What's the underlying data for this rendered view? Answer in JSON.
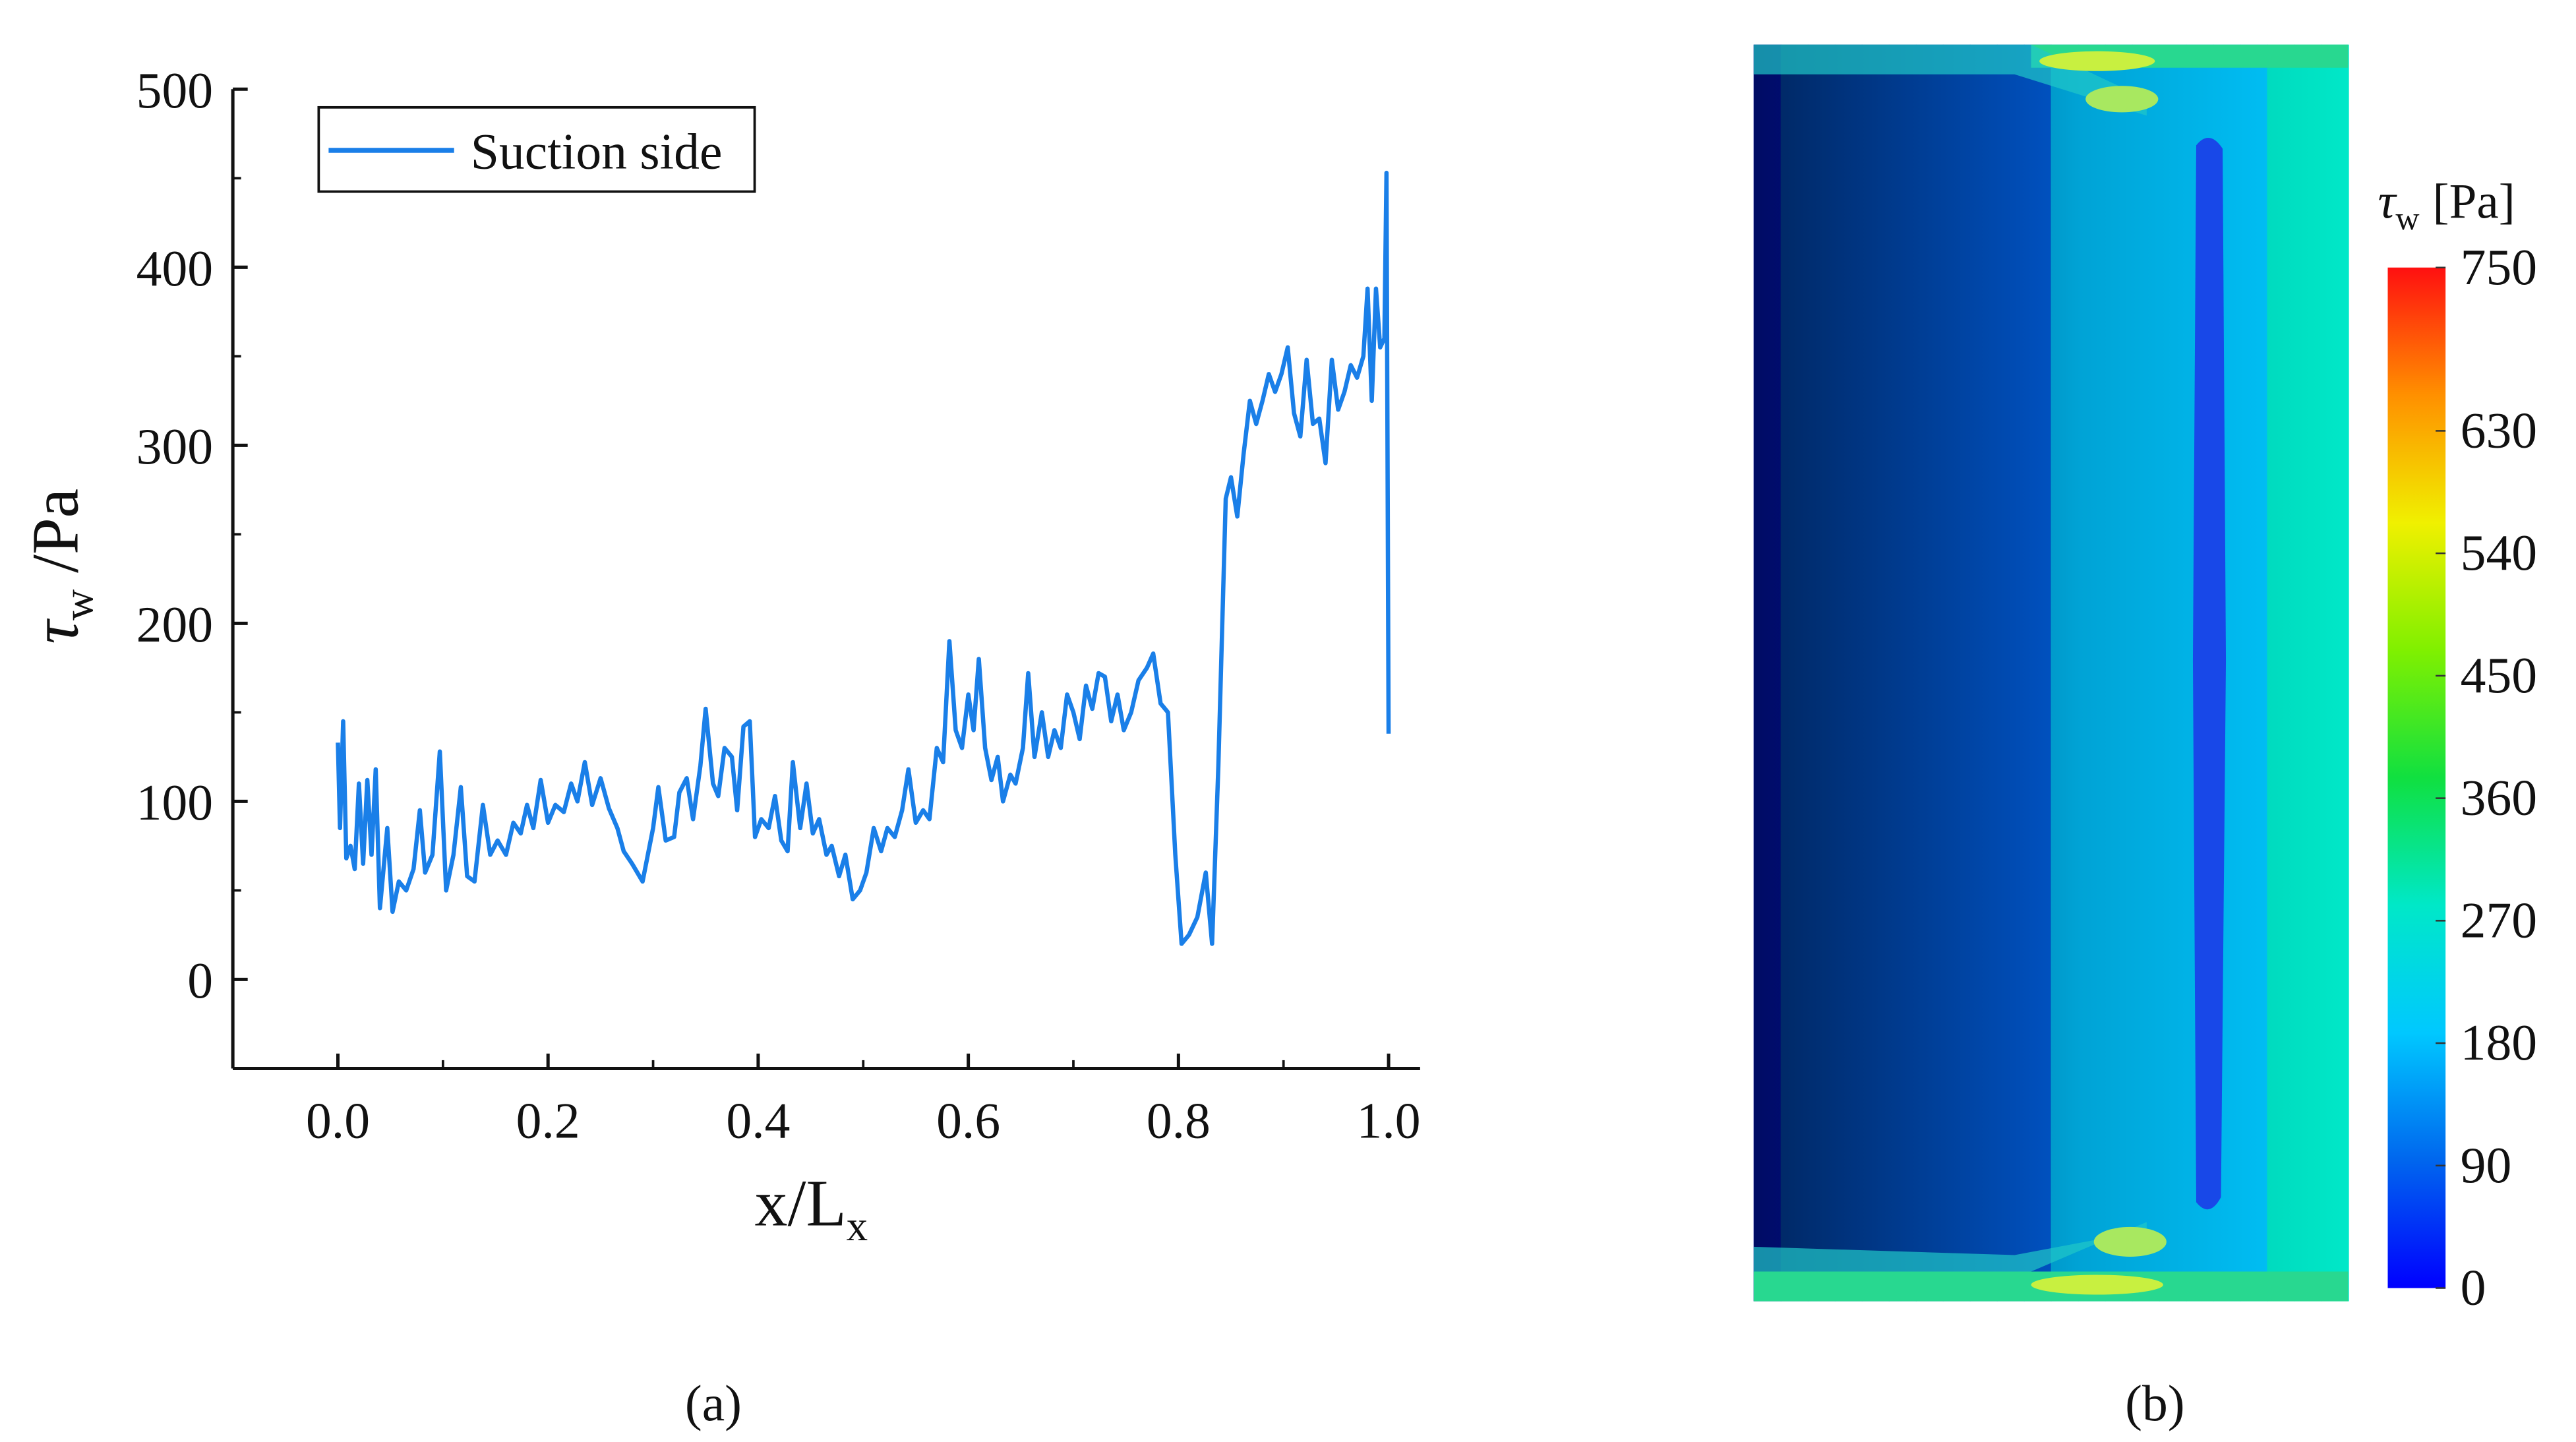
{
  "chart_data": [
    {
      "type": "line",
      "label": "(a)",
      "xlabel": {
        "main": "x/L",
        "sub": "x"
      },
      "ylabel": {
        "main": "τ",
        "sub": "w",
        "unit": "/Pa"
      },
      "xlim": [
        -0.1,
        1.03
      ],
      "ylim": [
        -50,
        500
      ],
      "xticks": [
        {
          "value": 0,
          "label": "0.0"
        },
        {
          "value": 0.2,
          "label": "0.2"
        },
        {
          "value": 0.4,
          "label": "0.4"
        },
        {
          "value": 0.6,
          "label": "0.6"
        },
        {
          "value": 0.8,
          "label": "0.8"
        },
        {
          "value": 1,
          "label": "1.0"
        }
      ],
      "xminor": [
        -0.1,
        0.1,
        0.3,
        0.5,
        0.7,
        0.9
      ],
      "yticks": [
        0,
        100,
        200,
        300,
        400,
        500
      ],
      "yminor": [
        -50,
        50,
        150,
        250,
        350,
        450
      ],
      "legend": "upper left",
      "x": [
        0,
        0.002,
        0.005,
        0.008,
        0.012,
        0.016,
        0.02,
        0.024,
        0.028,
        0.032,
        0.036,
        0.04,
        0.047,
        0.052,
        0.058,
        0.065,
        0.072,
        0.078,
        0.083,
        0.09,
        0.097,
        0.103,
        0.11,
        0.117,
        0.123,
        0.13,
        0.138,
        0.145,
        0.152,
        0.16,
        0.167,
        0.174,
        0.18,
        0.186,
        0.193,
        0.2,
        0.207,
        0.215,
        0.222,
        0.228,
        0.235,
        0.242,
        0.25,
        0.258,
        0.266,
        0.272,
        0.28,
        0.29,
        0.3,
        0.305,
        0.312,
        0.32,
        0.325,
        0.332,
        0.338,
        0.345,
        0.35,
        0.357,
        0.362,
        0.368,
        0.375,
        0.38,
        0.386,
        0.392,
        0.397,
        0.403,
        0.41,
        0.416,
        0.422,
        0.428,
        0.433,
        0.44,
        0.446,
        0.452,
        0.458,
        0.465,
        0.47,
        0.477,
        0.483,
        0.49,
        0.497,
        0.503,
        0.51,
        0.517,
        0.523,
        0.53,
        0.537,
        0.543,
        0.55,
        0.557,
        0.563,
        0.57,
        0.576,
        0.582,
        0.588,
        0.594,
        0.6,
        0.605,
        0.61,
        0.616,
        0.622,
        0.628,
        0.633,
        0.64,
        0.645,
        0.652,
        0.657,
        0.663,
        0.67,
        0.676,
        0.682,
        0.688,
        0.694,
        0.7,
        0.706,
        0.712,
        0.718,
        0.724,
        0.73,
        0.736,
        0.742,
        0.748,
        0.755,
        0.762,
        0.77,
        0.776,
        0.783,
        0.79,
        0.797,
        0.803,
        0.81,
        0.818,
        0.826,
        0.832,
        0.838,
        0.845,
        0.85,
        0.856,
        0.862,
        0.868,
        0.874,
        0.88,
        0.886,
        0.892,
        0.898,
        0.904,
        0.91,
        0.916,
        0.922,
        0.928,
        0.934,
        0.94,
        0.946,
        0.952,
        0.958,
        0.964,
        0.97,
        0.976,
        0.98,
        0.984,
        0.988,
        0.992,
        0.996,
        0.998,
        1
      ],
      "series": [
        {
          "name": "Suction side",
          "color": "#1a7fe8",
          "values": [
            133,
            85,
            145,
            68,
            75,
            62,
            110,
            65,
            112,
            70,
            118,
            40,
            85,
            38,
            55,
            50,
            62,
            95,
            60,
            70,
            128,
            50,
            70,
            108,
            58,
            55,
            98,
            70,
            78,
            70,
            88,
            82,
            98,
            85,
            112,
            88,
            98,
            94,
            110,
            100,
            122,
            98,
            113,
            96,
            85,
            72,
            65,
            55,
            85,
            108,
            78,
            80,
            105,
            113,
            90,
            120,
            152,
            110,
            103,
            130,
            125,
            95,
            142,
            145,
            80,
            90,
            85,
            103,
            78,
            72,
            122,
            85,
            110,
            82,
            90,
            70,
            75,
            58,
            70,
            45,
            50,
            60,
            85,
            72,
            85,
            80,
            95,
            118,
            88,
            95,
            90,
            130,
            122,
            190,
            140,
            130,
            160,
            140,
            180,
            130,
            112,
            125,
            100,
            115,
            110,
            130,
            172,
            125,
            150,
            125,
            140,
            130,
            160,
            150,
            135,
            165,
            152,
            172,
            170,
            145,
            160,
            140,
            150,
            168,
            175,
            183,
            155,
            150,
            70,
            20,
            25,
            35,
            60,
            20,
            120,
            270,
            282,
            260,
            295,
            325,
            312,
            325,
            340,
            330,
            340,
            355,
            318,
            305,
            348,
            312,
            315,
            290,
            348,
            320,
            330,
            345,
            338,
            350,
            388,
            325,
            388,
            355,
            360,
            453,
            138
          ]
        }
      ]
    },
    {
      "type": "contour",
      "label": "(b)",
      "colorbar_label": {
        "main": "τ",
        "sub": "w",
        "unit": "[Pa]"
      },
      "clim": [
        0,
        750
      ],
      "cticks": [
        0,
        90,
        180,
        270,
        360,
        450,
        540,
        630,
        750
      ],
      "colormap": [
        "#0000ff",
        "#0066ee",
        "#00c8ff",
        "#00e8c8",
        "#10e040",
        "#80f000",
        "#f0f000",
        "#ff9000",
        "#ff1010"
      ],
      "columns": [
        40,
        50,
        60,
        70,
        80,
        90,
        100,
        110,
        120,
        130,
        140,
        150,
        160,
        170,
        180,
        190,
        200,
        210,
        230,
        250,
        270,
        300
      ]
    }
  ]
}
